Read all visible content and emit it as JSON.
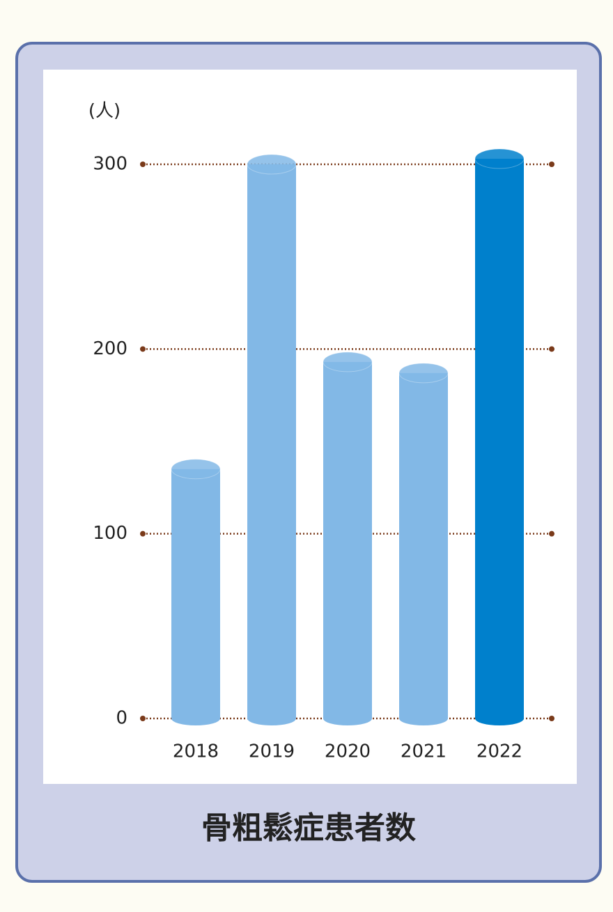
{
  "chart_data": {
    "type": "bar",
    "title": "骨粗鬆症患者数",
    "y_unit": "(人)",
    "categories": [
      "2018",
      "2019",
      "2020",
      "2021",
      "2022"
    ],
    "values": [
      135,
      300,
      193,
      187,
      303
    ],
    "colors": [
      "#82b8e6",
      "#82b8e6",
      "#82b8e6",
      "#82b8e6",
      "#0080cc"
    ],
    "ylim": [
      0,
      300
    ],
    "yticks": [
      0,
      100,
      200,
      300
    ],
    "grid": true,
    "grid_color": "#7a3a1a"
  }
}
